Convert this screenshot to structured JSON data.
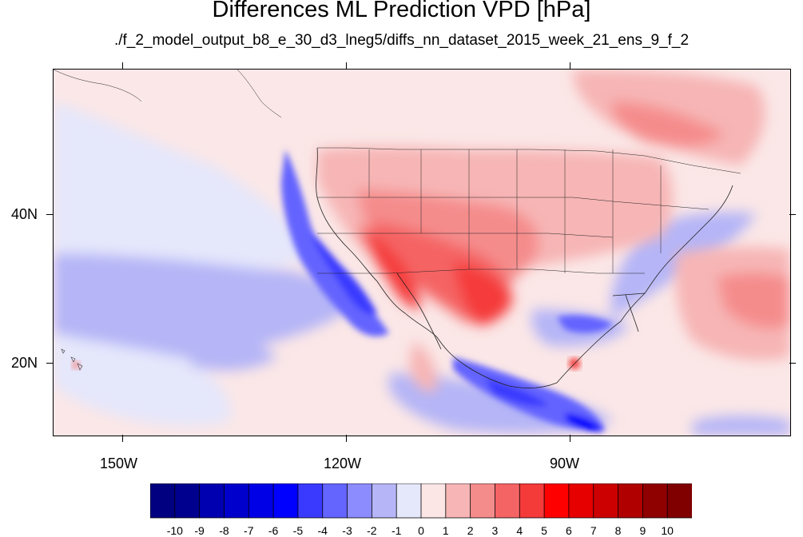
{
  "title": "Differences ML Prediction VPD [hPa]",
  "subtitle": "./f_2_model_output_b8_e_30_d3_lneg5/diffs_nn_dataset_2015_week_21_ens_9_f_2",
  "lat_labels": [
    "40N",
    "20N"
  ],
  "lon_labels": [
    "150W",
    "120W",
    "90W"
  ],
  "colorbar": {
    "labels": [
      "-10",
      "-9",
      "-8",
      "-7",
      "-6",
      "-5",
      "-4",
      "-3",
      "-2",
      "-1",
      "0",
      "1",
      "2",
      "3",
      "4",
      "5",
      "6",
      "7",
      "8",
      "9",
      "10"
    ],
    "colors": [
      "#000080",
      "#00008f",
      "#0000b0",
      "#0000cc",
      "#0000e6",
      "#0000ff",
      "#3a3aff",
      "#6464ff",
      "#8c8cff",
      "#b5b5f7",
      "#e5e7fb",
      "#fbe5e5",
      "#f7b5b5",
      "#f58c8c",
      "#f56464",
      "#f53a3a",
      "#ff0000",
      "#e60000",
      "#cc0000",
      "#b00000",
      "#8f0000",
      "#800000"
    ]
  }
}
